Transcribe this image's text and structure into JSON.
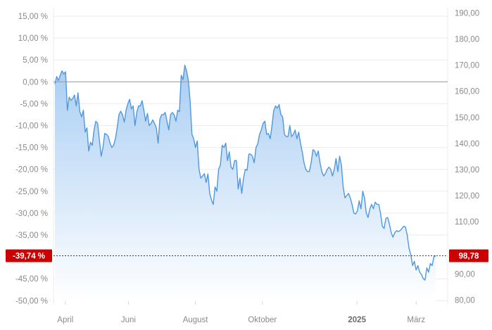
{
  "chart_data": {
    "type": "area",
    "title": "",
    "y_left": {
      "ticks": [
        "15,00 %",
        "10,00 %",
        "5,00 %",
        "0,00 %",
        "-5,00 %",
        "-10,00 %",
        "-15,00 %",
        "-20,00 %",
        "-25,00 %",
        "-30,00 %",
        "-35,00 %",
        "-45,00 %",
        "-50,00 %"
      ],
      "tick_values": [
        15,
        10,
        5,
        0,
        -5,
        -10,
        -15,
        -20,
        -25,
        -30,
        -35,
        -45,
        -50
      ],
      "range": [
        -52,
        17
      ]
    },
    "y_right": {
      "ticks": [
        "190,00",
        "180,00",
        "170,00",
        "160,00",
        "150,00",
        "140,00",
        "130,00",
        "120,00",
        "110,00",
        "90,00",
        "80,00"
      ],
      "tick_values": [
        190,
        180,
        170,
        160,
        150,
        140,
        130,
        120,
        110,
        90,
        80
      ]
    },
    "x_axis": {
      "labels": [
        "April",
        "Juni",
        "August",
        "Oktober",
        "2025",
        "März"
      ],
      "label_positions": [
        0.03,
        0.19,
        0.36,
        0.53,
        0.77,
        0.92
      ],
      "bold": [
        false,
        false,
        false,
        false,
        true,
        false
      ]
    },
    "current": {
      "percent_label": "-39,74 %",
      "value_label": "98,78",
      "percent": -39.74
    },
    "baseline_percent": 0,
    "colors": {
      "line": "#4f98e0",
      "fill_top": "#a9cdf3",
      "fill_bottom": "#ffffff",
      "badge": "#cc0000",
      "grid": "#ececec",
      "zero": "#9a9a9a",
      "ref": "#cc0000"
    },
    "series": [
      {
        "values": [
          -0.5,
          1.2,
          0.3,
          1.5,
          2.5,
          1.8,
          2.3,
          -6.5,
          -3.5,
          -4.2,
          -3.8,
          -3,
          -5.5,
          -2.5,
          -6.8,
          -8,
          -6.5,
          -11.5,
          -10.5,
          -15.8,
          -13.8,
          -14.5,
          -11,
          -9,
          -9.5,
          -13.2,
          -17,
          -15,
          -11.8,
          -12,
          -12.5,
          -14,
          -15,
          -14.5,
          -13,
          -10.5,
          -7.5,
          -6.7,
          -7.5,
          -9.2,
          -6.5,
          -5,
          -4,
          -6.2,
          -5.5,
          -10,
          -7,
          -5.5,
          -5.5,
          -4.3,
          -6.5,
          -9,
          -7.2,
          -10,
          -9.5,
          -8.7,
          -9.5,
          -10.5,
          -14,
          -8.5,
          -7.5,
          -7.5,
          -7,
          -9,
          -11,
          -7.5,
          -7,
          -7.5,
          -9,
          -6.5,
          -6.8,
          1.5,
          0.5,
          3.8,
          2.5,
          0.3,
          -4.5,
          -12,
          -13,
          -15,
          -13.5,
          -20,
          -22,
          -21.5,
          -21,
          -23,
          -21,
          -25.5,
          -27,
          -28,
          -24,
          -25,
          -20,
          -19,
          -14.5,
          -15,
          -14,
          -18,
          -16,
          -19.5,
          -20,
          -18,
          -18,
          -24.5,
          -22,
          -25.5,
          -22,
          -20,
          -20.2,
          -16.5,
          -16.5,
          -17,
          -18.5,
          -15,
          -14.2,
          -12,
          -11,
          -9.5,
          -9,
          -12,
          -11.8,
          -13,
          -10,
          -6.5,
          -5.5,
          -6,
          -5.2,
          -7.5,
          -8,
          -12,
          -12.5,
          -12.5,
          -10,
          -12.5,
          -12,
          -11,
          -13,
          -11.5,
          -14,
          -16,
          -18.5,
          -20,
          -20.5,
          -20.5,
          -18.5,
          -15.5,
          -15.8,
          -17,
          -15.8,
          -18.5,
          -20.5,
          -21.5,
          -21,
          -20,
          -19.5,
          -20,
          -21.5,
          -20,
          -17.5,
          -20.5,
          -17,
          -19,
          -24,
          -26.5,
          -26,
          -25.5,
          -26.5,
          -28,
          -30,
          -30.2,
          -29.5,
          -27.2,
          -29,
          -25,
          -26.5,
          -30,
          -31,
          -29,
          -28,
          -29,
          -27.5,
          -28,
          -28,
          -30,
          -33,
          -33.5,
          -31.2,
          -31,
          -32.5,
          -34.5,
          -35.5,
          -34.5,
          -34,
          -34.2,
          -34,
          -33.5,
          -33,
          -33.2,
          -35,
          -38,
          -39.5,
          -42,
          -41,
          -43,
          -42,
          -43.5,
          -44,
          -45,
          -45.3,
          -42.5,
          -43.5,
          -41.5,
          -42,
          -40,
          -39.74
        ]
      }
    ]
  }
}
